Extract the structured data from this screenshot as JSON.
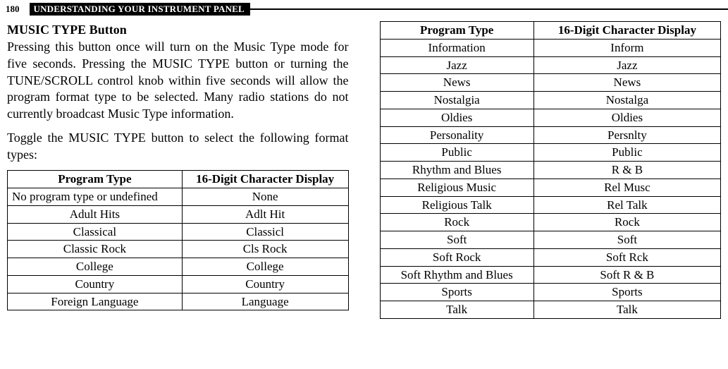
{
  "header": {
    "page_number": "180",
    "title": "UNDERSTANDING YOUR INSTRUMENT PANEL"
  },
  "section": {
    "heading": "MUSIC TYPE Button",
    "para1": "Pressing this button once will turn on the Music Type mode for five seconds. Pressing the MUSIC TYPE button or turning the TUNE/SCROLL control knob within five seconds will allow the program format type to be selected. Many radio stations do not currently broadcast Music Type information.",
    "para2": "Toggle the MUSIC TYPE button to select the following format types:"
  },
  "table_header": {
    "col1": "Program Type",
    "col2": "16-Digit Character Display"
  },
  "table_left": [
    {
      "c1": "No program type or undefined",
      "c2": "None",
      "multi": true
    },
    {
      "c1": "Adult Hits",
      "c2": "Adlt Hit"
    },
    {
      "c1": "Classical",
      "c2": "Classicl"
    },
    {
      "c1": "Classic Rock",
      "c2": "Cls Rock"
    },
    {
      "c1": "College",
      "c2": "College"
    },
    {
      "c1": "Country",
      "c2": "Country"
    },
    {
      "c1": "Foreign Language",
      "c2": "Language"
    }
  ],
  "table_right": [
    {
      "c1": "Information",
      "c2": "Inform"
    },
    {
      "c1": "Jazz",
      "c2": "Jazz"
    },
    {
      "c1": "News",
      "c2": "News"
    },
    {
      "c1": "Nostalgia",
      "c2": "Nostalga"
    },
    {
      "c1": "Oldies",
      "c2": "Oldies"
    },
    {
      "c1": "Personality",
      "c2": "Persnlty"
    },
    {
      "c1": "Public",
      "c2": "Public"
    },
    {
      "c1": "Rhythm and Blues",
      "c2": "R & B"
    },
    {
      "c1": "Religious Music",
      "c2": "Rel Musc"
    },
    {
      "c1": "Religious Talk",
      "c2": "Rel Talk"
    },
    {
      "c1": "Rock",
      "c2": "Rock"
    },
    {
      "c1": "Soft",
      "c2": "Soft"
    },
    {
      "c1": "Soft Rock",
      "c2": "Soft Rck"
    },
    {
      "c1": "Soft Rhythm and Blues",
      "c2": "Soft R & B"
    },
    {
      "c1": "Sports",
      "c2": "Sports"
    },
    {
      "c1": "Talk",
      "c2": "Talk"
    }
  ]
}
